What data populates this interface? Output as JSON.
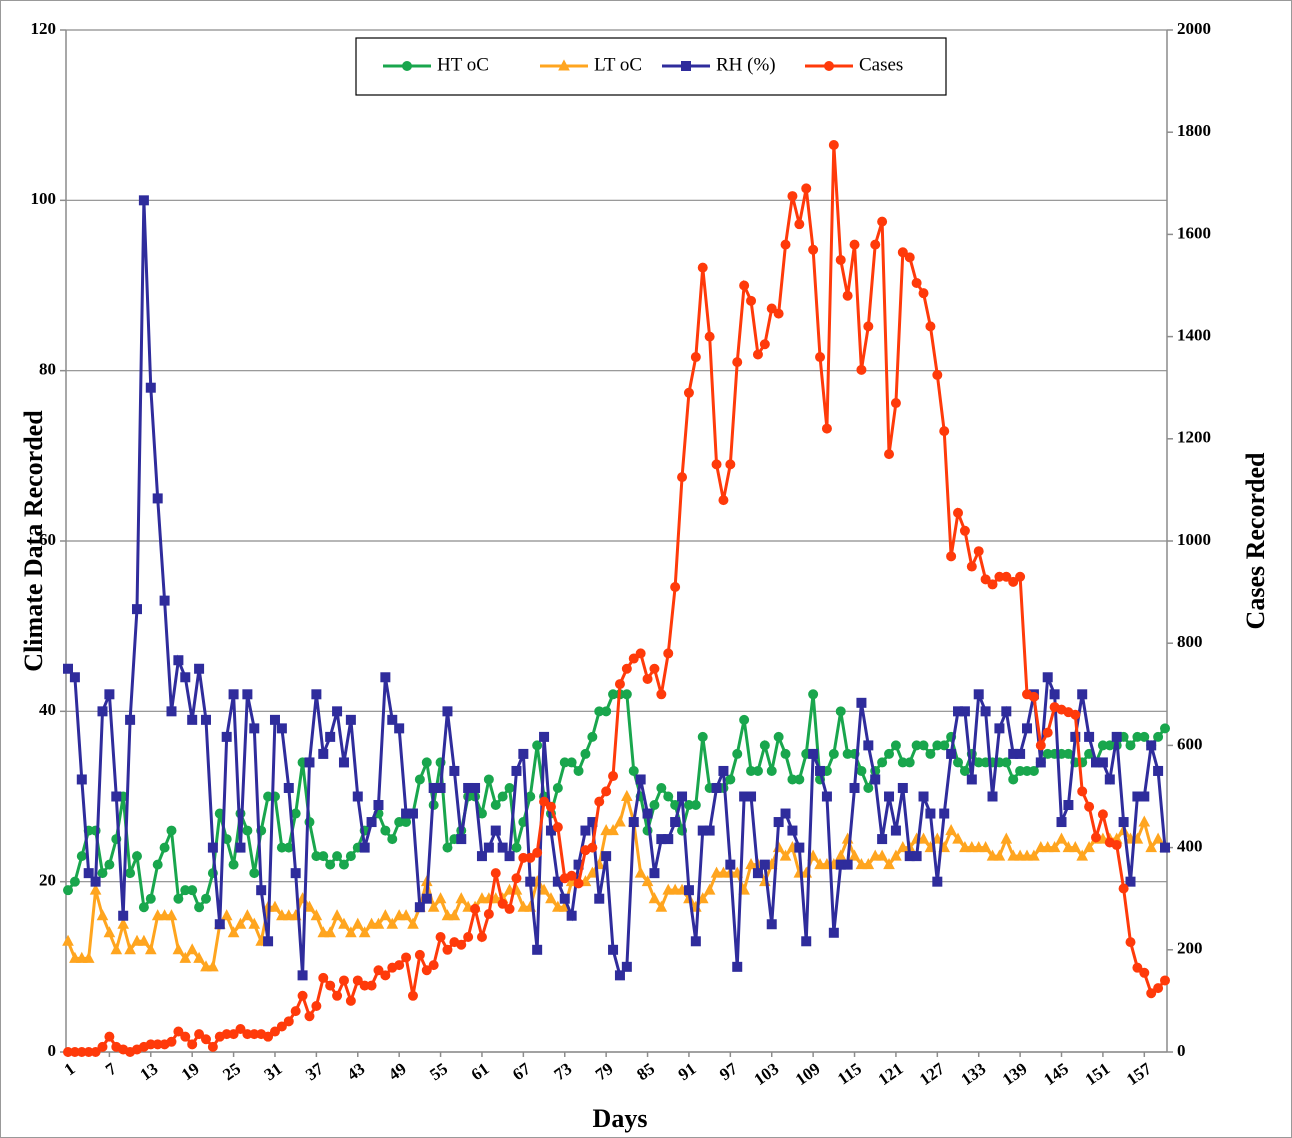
{
  "chart_data": {
    "type": "line",
    "xlabel": "Days",
    "ylabel": "Climate Data Recorded",
    "y2label": "Cases Recorded",
    "x": [
      1,
      2,
      3,
      4,
      5,
      6,
      7,
      8,
      9,
      10,
      11,
      12,
      13,
      14,
      15,
      16,
      17,
      18,
      19,
      20,
      21,
      22,
      23,
      24,
      25,
      26,
      27,
      28,
      29,
      30,
      31,
      32,
      33,
      34,
      35,
      36,
      37,
      38,
      39,
      40,
      41,
      42,
      43,
      44,
      45,
      46,
      47,
      48,
      49,
      50,
      51,
      52,
      53,
      54,
      55,
      56,
      57,
      58,
      59,
      60,
      61,
      62,
      63,
      64,
      65,
      66,
      67,
      68,
      69,
      70,
      71,
      72,
      73,
      74,
      75,
      76,
      77,
      78,
      79,
      80,
      81,
      82,
      83,
      84,
      85,
      86,
      87,
      88,
      89,
      90,
      91,
      92,
      93,
      94,
      95,
      96,
      97,
      98,
      99,
      100,
      101,
      102,
      103,
      104,
      105,
      106,
      107,
      108,
      109,
      110,
      111,
      112,
      113,
      114,
      115,
      116,
      117,
      118,
      119,
      120,
      121,
      122,
      123,
      124,
      125,
      126,
      127,
      128,
      129,
      130,
      131,
      132,
      133,
      134,
      135,
      136,
      137,
      138,
      139,
      140,
      141,
      142,
      143,
      144,
      145,
      146,
      147,
      148,
      149,
      150,
      151,
      152,
      153,
      154,
      155,
      156,
      157,
      158,
      159,
      160
    ],
    "xlim": [
      1,
      160
    ],
    "xticks": [
      1,
      7,
      13,
      19,
      25,
      31,
      37,
      43,
      49,
      55,
      61,
      67,
      73,
      79,
      85,
      91,
      97,
      103,
      109,
      115,
      121,
      127,
      133,
      139,
      145,
      151,
      157
    ],
    "ylim": [
      0,
      120
    ],
    "yticks": [
      0,
      20,
      40,
      60,
      80,
      100,
      120
    ],
    "y2lim": [
      0,
      2000
    ],
    "y2ticks": [
      0,
      200,
      400,
      600,
      800,
      1000,
      1200,
      1400,
      1600,
      1800,
      2000
    ],
    "grid": true,
    "legend": "top",
    "series": [
      {
        "name": "HT oC",
        "color": "#19a64d",
        "marker": "circle",
        "values": [
          19,
          20,
          23,
          26,
          26,
          21,
          22,
          25,
          30,
          21,
          23,
          17,
          18,
          22,
          24,
          26,
          18,
          19,
          19,
          17,
          18,
          21,
          28,
          25,
          22,
          28,
          26,
          21,
          26,
          30,
          30,
          24,
          24,
          28,
          34,
          27,
          23,
          23,
          22,
          23,
          22,
          23,
          24,
          26,
          27,
          28,
          26,
          25,
          27,
          27,
          28,
          32,
          34,
          29,
          34,
          24,
          25,
          26,
          30,
          30,
          28,
          32,
          29,
          30,
          31,
          24,
          27,
          30,
          36,
          30,
          28,
          31,
          34,
          34,
          33,
          35,
          37,
          40,
          40,
          42,
          42,
          42,
          33,
          30,
          26,
          29,
          31,
          30,
          29,
          26,
          29,
          29,
          37,
          31,
          31,
          31,
          32,
          35,
          39,
          33,
          33,
          36,
          33,
          37,
          35,
          32,
          32,
          35,
          42,
          32,
          33,
          35,
          40,
          35,
          35,
          33,
          31,
          33,
          34,
          35,
          36,
          34,
          34,
          36,
          36,
          35,
          36,
          36,
          37,
          34,
          33,
          35,
          34,
          34,
          34,
          34,
          34,
          32,
          33,
          33,
          33,
          34,
          35,
          35,
          35,
          35,
          34,
          34,
          35,
          34,
          36,
          36,
          36,
          37,
          36,
          37,
          37,
          36,
          37,
          38
        ]
      },
      {
        "name": "LT oC",
        "color": "#ffa51f",
        "marker": "triangle",
        "values": [
          13,
          11,
          11,
          11,
          19,
          16,
          14,
          12,
          15,
          12,
          13,
          13,
          12,
          16,
          16,
          16,
          12,
          11,
          12,
          11,
          10,
          10,
          15,
          16,
          14,
          15,
          16,
          15,
          13,
          17,
          17,
          16,
          16,
          16,
          18,
          17,
          16,
          14,
          14,
          16,
          15,
          14,
          15,
          14,
          15,
          15,
          16,
          15,
          16,
          16,
          15,
          17,
          20,
          17,
          18,
          16,
          16,
          18,
          17,
          17,
          18,
          18,
          18,
          18,
          19,
          19,
          17,
          17,
          20,
          19,
          18,
          17,
          17,
          20,
          20,
          20,
          21,
          22,
          26,
          26,
          27,
          30,
          27,
          21,
          20,
          18,
          17,
          19,
          19,
          19,
          18,
          17,
          18,
          19,
          21,
          21,
          21,
          21,
          19,
          22,
          22,
          20,
          22,
          24,
          23,
          24,
          21,
          21,
          23,
          22,
          22,
          22,
          23,
          25,
          23,
          22,
          22,
          23,
          23,
          22,
          23,
          24,
          24,
          25,
          25,
          24,
          25,
          24,
          26,
          25,
          24,
          24,
          24,
          24,
          23,
          23,
          25,
          23,
          23,
          23,
          23,
          24,
          24,
          24,
          25,
          24,
          24,
          23,
          24,
          25,
          25,
          25,
          25,
          26,
          25,
          25,
          27,
          24,
          25,
          24
        ]
      },
      {
        "name": "RH (%)",
        "color": "#2f2c9c",
        "marker": "square",
        "values": [
          45,
          44,
          32,
          21,
          20,
          40,
          42,
          30,
          16,
          39,
          52,
          100,
          78,
          65,
          53,
          40,
          46,
          44,
          39,
          45,
          39,
          24,
          15,
          37,
          42,
          24,
          42,
          38,
          19,
          13,
          39,
          38,
          31,
          21,
          9,
          34,
          42,
          35,
          37,
          40,
          34,
          39,
          30,
          24,
          27,
          29,
          44,
          39,
          38,
          28,
          28,
          17,
          18,
          31,
          31,
          40,
          33,
          25,
          31,
          31,
          23,
          24,
          26,
          24,
          23,
          33,
          35,
          20,
          12,
          37,
          26,
          20,
          18,
          16,
          22,
          26,
          27,
          18,
          23,
          12,
          9,
          10,
          27,
          32,
          28,
          21,
          25,
          25,
          27,
          30,
          19,
          13,
          26,
          26,
          31,
          33,
          22,
          10,
          30,
          30,
          21,
          22,
          15,
          27,
          28,
          26,
          24,
          13,
          35,
          33,
          30,
          14,
          22,
          22,
          31,
          41,
          36,
          32,
          25,
          30,
          26,
          31,
          23,
          23,
          30,
          28,
          20,
          28,
          35,
          40,
          40,
          32,
          42,
          40,
          30,
          38,
          40,
          35,
          35,
          38,
          42,
          34,
          44,
          42,
          27,
          29,
          37,
          42,
          37,
          34,
          34,
          32,
          37,
          27,
          20,
          30,
          30,
          36,
          33,
          24
        ]
      },
      {
        "name": "Cases",
        "color": "#ff3a0a",
        "marker": "circle",
        "axis": "y2",
        "values": [
          0,
          0,
          0,
          0,
          0,
          10,
          30,
          10,
          5,
          0,
          5,
          10,
          15,
          15,
          15,
          20,
          40,
          30,
          15,
          35,
          25,
          10,
          30,
          35,
          35,
          45,
          35,
          35,
          35,
          30,
          40,
          50,
          60,
          80,
          110,
          70,
          90,
          145,
          130,
          110,
          140,
          100,
          140,
          130,
          130,
          160,
          150,
          165,
          170,
          185,
          110,
          190,
          160,
          170,
          225,
          200,
          215,
          210,
          225,
          280,
          225,
          270,
          350,
          290,
          280,
          340,
          380,
          380,
          390,
          490,
          480,
          440,
          340,
          345,
          330,
          395,
          400,
          490,
          510,
          540,
          720,
          750,
          770,
          780,
          730,
          750,
          700,
          780,
          910,
          1125,
          1290,
          1360,
          1535,
          1400,
          1150,
          1080,
          1150,
          1350,
          1500,
          1470,
          1365,
          1385,
          1455,
          1445,
          1580,
          1675,
          1620,
          1690,
          1570,
          1360,
          1220,
          1775,
          1550,
          1480,
          1580,
          1335,
          1420,
          1580,
          1625,
          1170,
          1270,
          1565,
          1555,
          1505,
          1485,
          1420,
          1325,
          1215,
          970,
          1055,
          1020,
          950,
          980,
          925,
          915,
          930,
          930,
          920,
          930,
          700,
          695,
          600,
          625,
          675,
          670,
          665,
          660,
          510,
          480,
          420,
          465,
          410,
          405,
          320,
          215,
          165,
          155,
          115,
          125,
          140
        ]
      }
    ]
  }
}
